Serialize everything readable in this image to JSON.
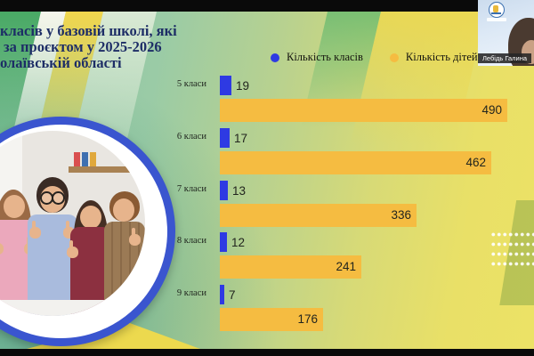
{
  "participant": {
    "name": "Лебідь Галина"
  },
  "slide": {
    "title_lines": [
      "класів у базовій школі, які",
      "за проєктом у 2025-2026",
      "олаївській області"
    ]
  },
  "chart_data": {
    "type": "bar",
    "orientation": "horizontal",
    "title": "",
    "categories": [
      "5 класи",
      "6 класи",
      "7 класи",
      "8 класи",
      "9 класи"
    ],
    "series": [
      {
        "name": "Кількість класів",
        "color": "#2e3ae3",
        "values": [
          19,
          17,
          13,
          12,
          7
        ]
      },
      {
        "name": "Кількість дітей",
        "color": "#f5bc41",
        "values": [
          490,
          462,
          336,
          241,
          176
        ]
      }
    ],
    "xlim": [
      0,
      490
    ],
    "legend_position": "top",
    "grid": false,
    "value_labels": true
  },
  "colors": {
    "title_text": "#1d2d66",
    "classes_series": "#2e3ae3",
    "children_series": "#f5bc41",
    "photo_ring": "#3a55cf"
  }
}
